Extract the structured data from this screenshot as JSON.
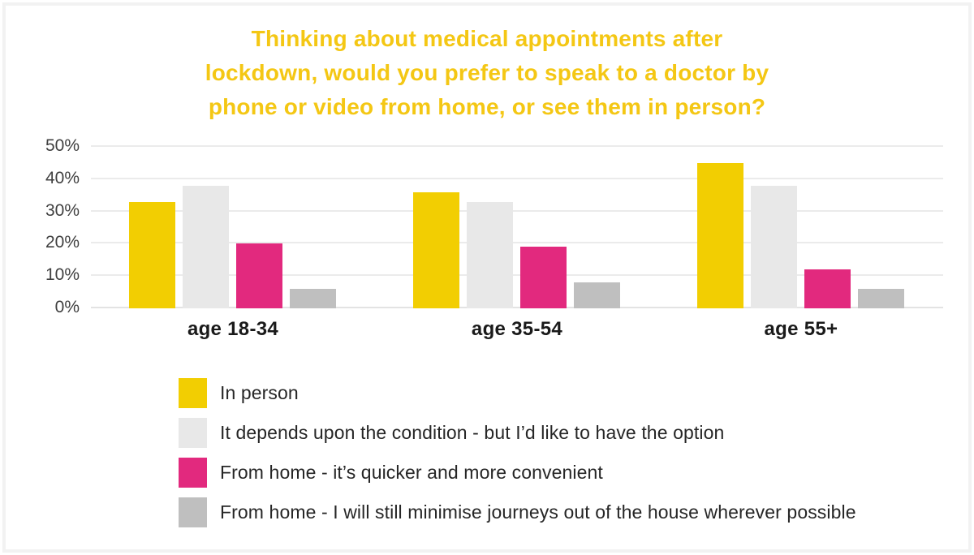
{
  "frame": {
    "border_color": "#F2F2F2"
  },
  "title": {
    "color": "#F4C714",
    "lines": [
      "Thinking about medical appointments after",
      "lockdown, would you prefer to speak to a doctor by",
      "phone or video from home, or see them in person?"
    ]
  },
  "chart_data": {
    "type": "bar",
    "title": "Thinking about medical appointments after lockdown, would you prefer to speak to a doctor by phone or video from home, or see them in person?",
    "categories": [
      "age 18-34",
      "age 35-54",
      "age 55+"
    ],
    "series": [
      {
        "name": "In person",
        "color": "#F2CE02",
        "values": [
          33,
          36,
          45
        ]
      },
      {
        "name": "It depends upon the condition - but I’d like to have the option",
        "color": "#E8E8E8",
        "values": [
          38,
          33,
          38
        ]
      },
      {
        "name": "From home - it’s quicker and more convenient",
        "color": "#E2297E",
        "values": [
          20,
          19,
          12
        ]
      },
      {
        "name": "From home - I will still minimise journeys out of the house wherever possible",
        "color": "#BFBFBF",
        "values": [
          6,
          8,
          6
        ]
      }
    ],
    "xlabel": "",
    "ylabel": "",
    "ylim": [
      0,
      50
    ],
    "yticks": [
      0,
      10,
      20,
      30,
      40,
      50
    ],
    "ytick_labels": [
      "0%",
      "10%",
      "20%",
      "30%",
      "40%",
      "50%"
    ],
    "grid": true,
    "legend_position": "bottom-left"
  }
}
